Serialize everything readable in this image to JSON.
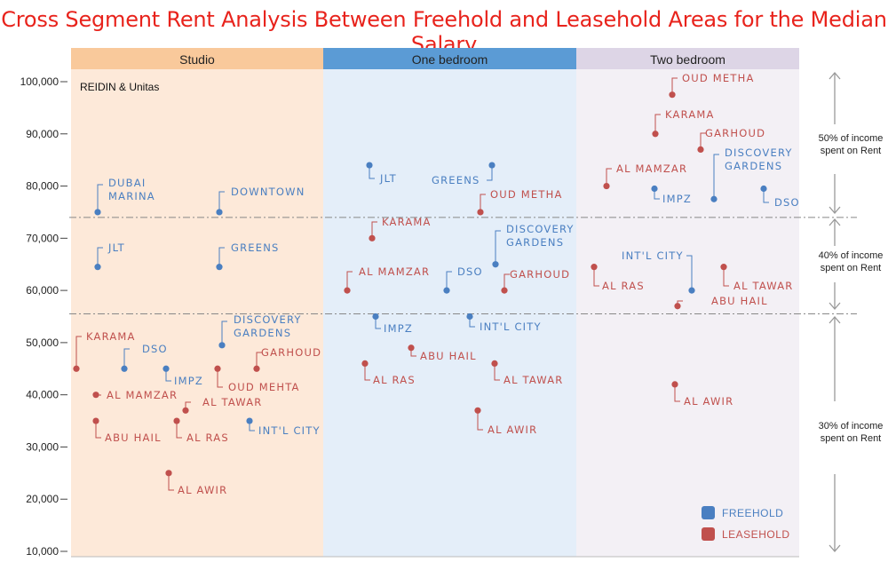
{
  "title": "Cross Segment Rent Analysis Between Freehold and Leasehold Areas for the Median Salary",
  "source": "REIDIN & Unitas",
  "colors": {
    "title": "#e8231c",
    "freehold": "#4a7fc1",
    "leasehold": "#c0504d",
    "studio_bg": "#fde9d9",
    "studio_header": "#f9c99b",
    "onebed_bg": "#e4eef9",
    "onebed_header": "#5b9bd5",
    "twobed_bg": "#f3f0f5",
    "twobed_header": "#ddd5e6"
  },
  "legend": {
    "freehold": "FREEHOLD",
    "leasehold": "LEASEHOLD"
  },
  "thresholds": [
    {
      "label_line1": "50% of income",
      "label_line2": "spent on Rent"
    },
    {
      "label_line1": "40% of income",
      "label_line2": "spent on Rent"
    },
    {
      "label_line1": "30% of income",
      "label_line2": "spent on Rent"
    }
  ],
  "chart_data": {
    "type": "scatter",
    "title": "Cross Segment Rent Analysis Between Freehold and Leasehold Areas for the Median Salary",
    "ylim": [
      10000,
      100000
    ],
    "yticks": [
      "10,000",
      "20,000",
      "30,000",
      "40,000",
      "50,000",
      "60,000",
      "70,000",
      "80,000",
      "90,000",
      "100,000"
    ],
    "threshold_values": [
      74000,
      55500
    ],
    "categories": [
      "Studio",
      "One bedroom",
      "Two bedroom"
    ],
    "series": [
      {
        "name": "FREEHOLD",
        "points": [
          {
            "segment": "Studio",
            "label": "DUBAI MARINA",
            "y": 75000
          },
          {
            "segment": "Studio",
            "label": "DOWNTOWN",
            "y": 75000
          },
          {
            "segment": "Studio",
            "label": "JLT",
            "y": 64500
          },
          {
            "segment": "Studio",
            "label": "GREENS",
            "y": 64500
          },
          {
            "segment": "Studio",
            "label": "DISCOVERY GARDENS",
            "y": 49500
          },
          {
            "segment": "Studio",
            "label": "DSO",
            "y": 45000
          },
          {
            "segment": "Studio",
            "label": "IMPZ",
            "y": 45000
          },
          {
            "segment": "Studio",
            "label": "INT'L CITY",
            "y": 35000
          },
          {
            "segment": "One bedroom",
            "label": "JLT",
            "y": 84000
          },
          {
            "segment": "One bedroom",
            "label": "GREENS",
            "y": 84000
          },
          {
            "segment": "One bedroom",
            "label": "DISCOVERY GARDENS",
            "y": 65000
          },
          {
            "segment": "One bedroom",
            "label": "DSO",
            "y": 60000
          },
          {
            "segment": "One bedroom",
            "label": "IMPZ",
            "y": 55000
          },
          {
            "segment": "One bedroom",
            "label": "INT'L CITY",
            "y": 55000
          },
          {
            "segment": "Two bedroom",
            "label": "DISCOVERY GARDENS",
            "y": 77500
          },
          {
            "segment": "Two bedroom",
            "label": "IMPZ",
            "y": 79500
          },
          {
            "segment": "Two bedroom",
            "label": "DSO",
            "y": 79500
          },
          {
            "segment": "Two bedroom",
            "label": "INT'L CITY",
            "y": 60000
          }
        ]
      },
      {
        "name": "LEASEHOLD",
        "points": [
          {
            "segment": "Studio",
            "label": "KARAMA",
            "y": 45000
          },
          {
            "segment": "Studio",
            "label": "OUD MEHTA",
            "y": 45000
          },
          {
            "segment": "Studio",
            "label": "GARHOUD",
            "y": 45000
          },
          {
            "segment": "Studio",
            "label": "AL MAMZAR",
            "y": 40000
          },
          {
            "segment": "Studio",
            "label": "AL TAWAR",
            "y": 37000
          },
          {
            "segment": "Studio",
            "label": "ABU HAIL",
            "y": 35000
          },
          {
            "segment": "Studio",
            "label": "AL RAS",
            "y": 35000
          },
          {
            "segment": "Studio",
            "label": "AL AWIR",
            "y": 25000
          },
          {
            "segment": "One bedroom",
            "label": "OUD METHA",
            "y": 75000
          },
          {
            "segment": "One bedroom",
            "label": "KARAMA",
            "y": 70000
          },
          {
            "segment": "One bedroom",
            "label": "AL MAMZAR",
            "y": 60000
          },
          {
            "segment": "One bedroom",
            "label": "GARHOUD",
            "y": 60000
          },
          {
            "segment": "One bedroom",
            "label": "ABU HAIL",
            "y": 49000
          },
          {
            "segment": "One bedroom",
            "label": "AL RAS",
            "y": 46000
          },
          {
            "segment": "One bedroom",
            "label": "AL TAWAR",
            "y": 46000
          },
          {
            "segment": "One bedroom",
            "label": "AL AWIR",
            "y": 37000
          },
          {
            "segment": "Two bedroom",
            "label": "OUD METHA",
            "y": 97500
          },
          {
            "segment": "Two bedroom",
            "label": "KARAMA",
            "y": 90000
          },
          {
            "segment": "Two bedroom",
            "label": "GARHOUD",
            "y": 87000
          },
          {
            "segment": "Two bedroom",
            "label": "AL MAMZAR",
            "y": 80000
          },
          {
            "segment": "Two bedroom",
            "label": "AL RAS",
            "y": 64500
          },
          {
            "segment": "Two bedroom",
            "label": "AL TAWAR",
            "y": 64500
          },
          {
            "segment": "Two bedroom",
            "label": "ABU HAIL",
            "y": 57000
          },
          {
            "segment": "Two bedroom",
            "label": "AL AWIR",
            "y": 42000
          }
        ]
      }
    ]
  }
}
